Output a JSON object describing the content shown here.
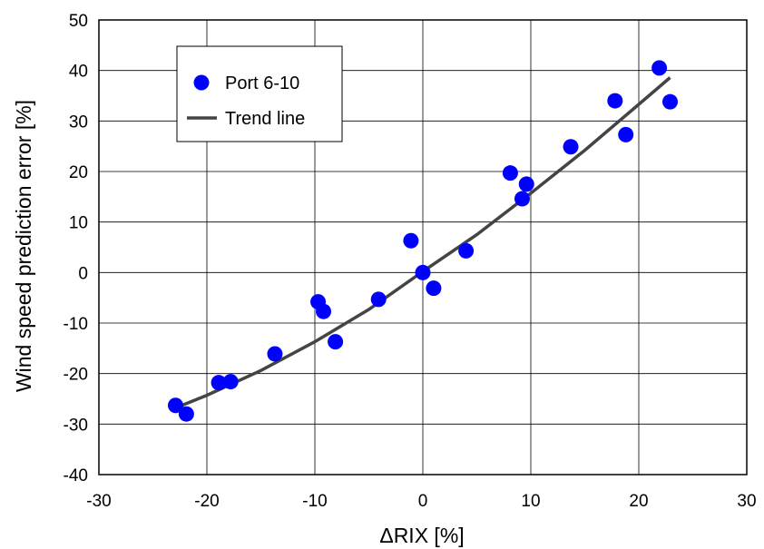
{
  "chart_data": {
    "type": "scatter",
    "xlabel": "ΔRIX [%]",
    "ylabel": "Wind speed prediction error [%]",
    "xlim": [
      -30,
      30
    ],
    "ylim": [
      -40,
      50
    ],
    "xticks": [
      -30,
      -20,
      -10,
      0,
      10,
      20,
      30
    ],
    "yticks": [
      -40,
      -30,
      -20,
      -10,
      0,
      10,
      20,
      30,
      40,
      50
    ],
    "xtick_labels": [
      "-30",
      "-20",
      "-10",
      "0",
      "10",
      "20",
      "30"
    ],
    "ytick_labels": [
      "-40",
      "-30",
      "-20",
      "-10",
      "0",
      "10",
      "20",
      "30",
      "40",
      "50"
    ],
    "grid": true,
    "legend_position": "top-left",
    "series": [
      {
        "name": "Port 6-10",
        "type": "scatter",
        "color": "#0000ff",
        "x": [
          -22.9,
          -21.9,
          -18.9,
          -17.8,
          -13.7,
          -9.7,
          -9.2,
          -8.1,
          -4.1,
          -1.1,
          0.0,
          1.0,
          4.0,
          8.1,
          9.2,
          9.6,
          13.7,
          17.8,
          18.8,
          21.9,
          22.9
        ],
        "y": [
          -26.3,
          -28.0,
          -21.8,
          -21.6,
          -16.1,
          -5.8,
          -7.7,
          -13.7,
          -5.3,
          6.3,
          0.0,
          -3.1,
          4.3,
          19.7,
          14.6,
          17.5,
          24.9,
          34.0,
          27.3,
          40.5,
          33.8
        ]
      },
      {
        "name": "Trend line",
        "type": "line",
        "color": "#444444",
        "x": [
          -22.9,
          -20,
          -15,
          -10,
          -5,
          0,
          5,
          10,
          15,
          20,
          22.9
        ],
        "y": [
          -26.8,
          -24.3,
          -19.4,
          -13.7,
          -7.3,
          0.2,
          7.5,
          15.7,
          24.2,
          33.3,
          38.6
        ]
      }
    ]
  }
}
